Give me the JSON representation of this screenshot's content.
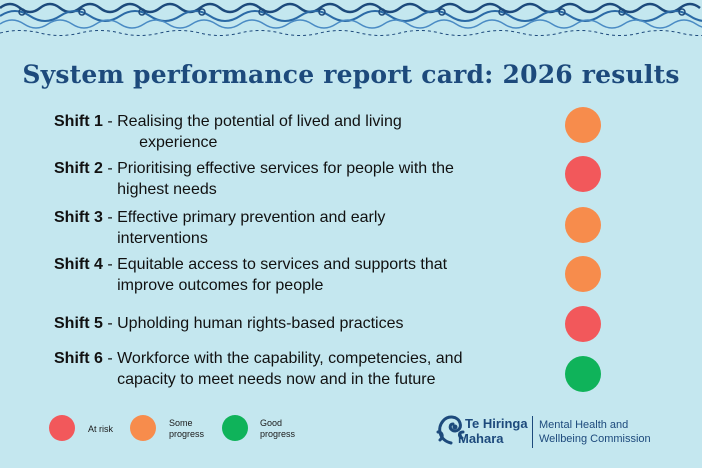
{
  "title": "System performance report card: 2026 results",
  "shifts": [
    {
      "name": "Shift 1",
      "sep": " - ",
      "line1": "Realising the potential of lived and living",
      "line2": "experience",
      "rating": "Some progress",
      "color": "#f78c4c"
    },
    {
      "name": "Shift 2",
      "sep": " - ",
      "line1": "Prioritising effective services for people with the",
      "line2": "highest needs",
      "rating": "At risk",
      "color": "#f2585b"
    },
    {
      "name": "Shift 3",
      "sep": " - ",
      "line1": "Effective primary prevention and early",
      "line2": "interventions",
      "rating": "Some progress",
      "color": "#f78c4c"
    },
    {
      "name": "Shift 4",
      "sep": " - ",
      "line1": "Equitable access to services and supports that",
      "line2": "improve outcomes for people",
      "rating": "Some progress",
      "color": "#f78c4c"
    },
    {
      "name": "Shift 5",
      "sep": " - ",
      "line1": "Upholding human rights-based practices",
      "line2": "",
      "rating": "At risk",
      "color": "#f2585b"
    },
    {
      "name": "Shift 6",
      "sep": " - ",
      "line1": "Workforce with the capability, competencies, and",
      "line2": "capacity to meet needs now and in the future",
      "rating": "Good progress",
      "color": "#0fb35a"
    }
  ],
  "legend": [
    {
      "label": "At risk",
      "color": "#f2585b"
    },
    {
      "label": "Some progress",
      "line1": "Some",
      "line2": "progress",
      "color": "#f78c4c"
    },
    {
      "label": "Good progress",
      "line1": "Good",
      "line2": "progress",
      "color": "#0fb35a"
    }
  ],
  "logo": {
    "name_line1": "Te Hiringa",
    "name_line2": "Mahara",
    "sub_line1": "Mental Health and",
    "sub_line2": "Wellbeing Commission",
    "icon": "koru-icon",
    "color": "#1d4a7c"
  }
}
